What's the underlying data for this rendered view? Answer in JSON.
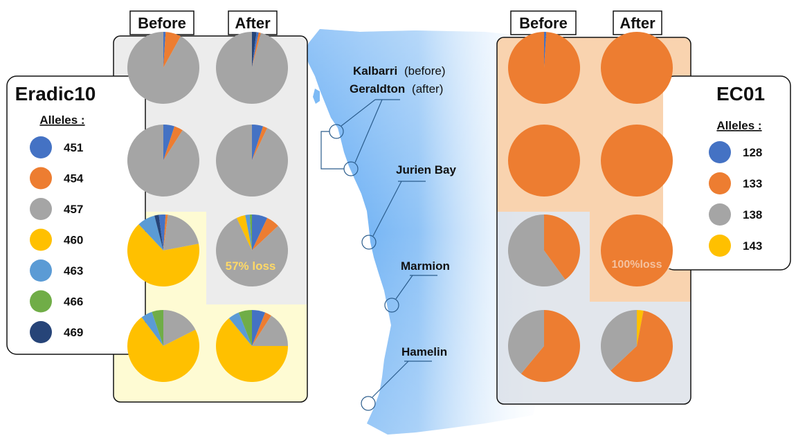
{
  "colors": {
    "451": "#4472c4",
    "454": "#ed7d31",
    "457": "#a5a5a5",
    "460": "#ffc000",
    "463": "#5b9bd5",
    "466": "#70ad47",
    "469": "#264478",
    "128": "#4472c4",
    "133": "#ed7d31",
    "138": "#a5a5a5",
    "143": "#ffc000",
    "loss_text": "#ffd966",
    "loss_text_ec": "#f4c2a0",
    "panel_grey": "#ececec",
    "panel_yellow": "#fefbd3",
    "panel_orange": "#f9d3af",
    "map_blue": "#6fb3f5"
  },
  "headers": {
    "before": "Before",
    "after": "After"
  },
  "eradic10": {
    "title": "Eradic10",
    "alleles_label": "Alleles :",
    "alleles": [
      "451",
      "454",
      "457",
      "460",
      "463",
      "466",
      "469"
    ],
    "loss_label": "57% loss"
  },
  "ec01": {
    "title": "EC01",
    "alleles_label": "Alleles :",
    "alleles": [
      "128",
      "133",
      "138",
      "143"
    ],
    "loss_label": "100%loss"
  },
  "locations": {
    "kalbarri": "Kalbarri",
    "kalbarri_note": "(before)",
    "geraldton": "Geraldton",
    "geraldton_note": "(after)",
    "jurien": "Jurien Bay",
    "marmion": "Marmion",
    "hamelin": "Hamelin"
  },
  "chart_data": [
    {
      "type": "pie",
      "title": "Eradic10",
      "rows": [
        "Kalbarri/Geraldton",
        "Jurien Bay",
        "Marmion",
        "Hamelin"
      ],
      "columns": [
        "Before",
        "After"
      ],
      "pies": [
        [
          {
            "slices": [
              {
                "allele": "451",
                "value": 1
              },
              {
                "allele": "454",
                "value": 7
              },
              {
                "allele": "457",
                "value": 92
              }
            ]
          },
          {
            "slices": [
              {
                "allele": "469",
                "value": 2
              },
              {
                "allele": "451",
                "value": 1
              },
              {
                "allele": "454",
                "value": 1
              },
              {
                "allele": "457",
                "value": 96
              }
            ]
          }
        ],
        [
          {
            "slices": [
              {
                "allele": "451",
                "value": 5
              },
              {
                "allele": "454",
                "value": 4
              },
              {
                "allele": "457",
                "value": 91
              }
            ]
          },
          {
            "slices": [
              {
                "allele": "451",
                "value": 5
              },
              {
                "allele": "454",
                "value": 2
              },
              {
                "allele": "457",
                "value": 93
              }
            ]
          }
        ],
        [
          {
            "slices": [
              {
                "allele": "451",
                "value": 1
              },
              {
                "allele": "454",
                "value": 1
              },
              {
                "allele": "457",
                "value": 20
              },
              {
                "allele": "460",
                "value": 66
              },
              {
                "allele": "463",
                "value": 8
              },
              {
                "allele": "469",
                "value": 2
              },
              {
                "allele": "451",
                "value": 2
              }
            ]
          },
          {
            "slices": [
              {
                "allele": "451",
                "value": 7
              },
              {
                "allele": "454",
                "value": 6
              },
              {
                "allele": "457",
                "value": 80
              },
              {
                "allele": "460",
                "value": 4
              },
              {
                "allele": "463",
                "value": 2
              },
              {
                "allele": "466",
                "value": 1
              }
            ]
          }
        ],
        [
          {
            "slices": [
              {
                "allele": "457",
                "value": 17
              },
              {
                "allele": "460",
                "value": 70
              },
              {
                "allele": "463",
                "value": 5
              },
              {
                "allele": "466",
                "value": 5
              }
            ]
          },
          {
            "slices": [
              {
                "allele": "451",
                "value": 6
              },
              {
                "allele": "454",
                "value": 3
              },
              {
                "allele": "457",
                "value": 16
              },
              {
                "allele": "460",
                "value": 64
              },
              {
                "allele": "463",
                "value": 5
              },
              {
                "allele": "466",
                "value": 6
              }
            ]
          }
        ]
      ]
    },
    {
      "type": "pie",
      "title": "EC01",
      "rows": [
        "Kalbarri/Geraldton",
        "Jurien Bay",
        "Marmion",
        "Hamelin"
      ],
      "columns": [
        "Before",
        "After"
      ],
      "pies": [
        [
          {
            "slices": [
              {
                "allele": "128",
                "value": 1
              },
              {
                "allele": "133",
                "value": 99
              }
            ]
          },
          {
            "slices": [
              {
                "allele": "133",
                "value": 100
              }
            ]
          }
        ],
        [
          {
            "slices": [
              {
                "allele": "133",
                "value": 100
              }
            ]
          },
          {
            "slices": [
              {
                "allele": "133",
                "value": 100
              }
            ]
          }
        ],
        [
          {
            "slices": [
              {
                "allele": "133",
                "value": 40
              },
              {
                "allele": "138",
                "value": 60
              }
            ]
          },
          {
            "slices": [
              {
                "allele": "133",
                "value": 100
              }
            ]
          }
        ],
        [
          {
            "slices": [
              {
                "allele": "133",
                "value": 61
              },
              {
                "allele": "138",
                "value": 39
              }
            ]
          },
          {
            "slices": [
              {
                "allele": "143",
                "value": 3
              },
              {
                "allele": "133",
                "value": 60
              },
              {
                "allele": "138",
                "value": 37
              }
            ]
          }
        ]
      ]
    }
  ]
}
